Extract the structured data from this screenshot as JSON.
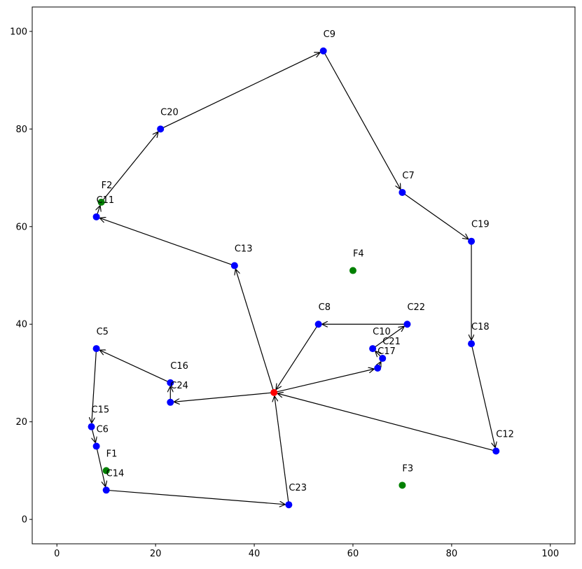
{
  "chart_data": {
    "type": "scatter",
    "title": "",
    "xlabel": "",
    "ylabel": "",
    "xlim": [
      -5,
      105
    ],
    "ylim": [
      -5,
      105
    ],
    "xticks": [
      0,
      20,
      40,
      60,
      80,
      100
    ],
    "yticks": [
      0,
      20,
      40,
      60,
      80,
      100
    ],
    "grid": false,
    "colors": {
      "customer": "#0000ff",
      "depot": "#ff0000",
      "facility": "#008000",
      "arrow": "#000000"
    },
    "depot": {
      "x": 44,
      "y": 26
    },
    "customers": [
      {
        "label": "C5",
        "x": 8,
        "y": 35
      },
      {
        "label": "C6",
        "x": 8,
        "y": 15
      },
      {
        "label": "C7",
        "x": 70,
        "y": 67
      },
      {
        "label": "C8",
        "x": 53,
        "y": 40
      },
      {
        "label": "C9",
        "x": 54,
        "y": 96
      },
      {
        "label": "C10",
        "x": 64,
        "y": 35
      },
      {
        "label": "C11",
        "x": 8,
        "y": 62
      },
      {
        "label": "C12",
        "x": 89,
        "y": 14
      },
      {
        "label": "C13",
        "x": 36,
        "y": 52
      },
      {
        "label": "C14",
        "x": 10,
        "y": 6
      },
      {
        "label": "C15",
        "x": 7,
        "y": 19
      },
      {
        "label": "C16",
        "x": 23,
        "y": 28
      },
      {
        "label": "C17",
        "x": 65,
        "y": 31
      },
      {
        "label": "C18",
        "x": 84,
        "y": 36
      },
      {
        "label": "C19",
        "x": 84,
        "y": 57
      },
      {
        "label": "C20",
        "x": 21,
        "y": 80
      },
      {
        "label": "C21",
        "x": 66,
        "y": 33
      },
      {
        "label": "C22",
        "x": 71,
        "y": 40
      },
      {
        "label": "C23",
        "x": 47,
        "y": 3
      },
      {
        "label": "C24",
        "x": 23,
        "y": 24
      }
    ],
    "facilities": [
      {
        "label": "F1",
        "x": 10,
        "y": 10
      },
      {
        "label": "F2",
        "x": 9,
        "y": 65
      },
      {
        "label": "F3",
        "x": 70,
        "y": 7
      },
      {
        "label": "F4",
        "x": 60,
        "y": 51
      }
    ],
    "arcs": [
      [
        [
          44,
          26
        ],
        [
          36,
          52
        ]
      ],
      [
        [
          36,
          52
        ],
        [
          8,
          62
        ]
      ],
      [
        [
          8,
          62
        ],
        [
          9,
          65
        ]
      ],
      [
        [
          9,
          65
        ],
        [
          21,
          80
        ]
      ],
      [
        [
          21,
          80
        ],
        [
          54,
          96
        ]
      ],
      [
        [
          54,
          96
        ],
        [
          70,
          67
        ]
      ],
      [
        [
          70,
          67
        ],
        [
          84,
          57
        ]
      ],
      [
        [
          84,
          57
        ],
        [
          84,
          36
        ]
      ],
      [
        [
          84,
          36
        ],
        [
          89,
          14
        ]
      ],
      [
        [
          89,
          14
        ],
        [
          44,
          26
        ]
      ],
      [
        [
          44,
          26
        ],
        [
          23,
          24
        ]
      ],
      [
        [
          23,
          24
        ],
        [
          23,
          28
        ]
      ],
      [
        [
          23,
          28
        ],
        [
          8,
          35
        ]
      ],
      [
        [
          8,
          35
        ],
        [
          7,
          19
        ]
      ],
      [
        [
          7,
          19
        ],
        [
          8,
          15
        ]
      ],
      [
        [
          8,
          15
        ],
        [
          10,
          6
        ]
      ],
      [
        [
          10,
          6
        ],
        [
          47,
          3
        ]
      ],
      [
        [
          47,
          3
        ],
        [
          44,
          26
        ]
      ],
      [
        [
          44,
          26
        ],
        [
          65,
          31
        ]
      ],
      [
        [
          65,
          31
        ],
        [
          66,
          33
        ]
      ],
      [
        [
          66,
          33
        ],
        [
          64,
          35
        ]
      ],
      [
        [
          64,
          35
        ],
        [
          71,
          40
        ]
      ],
      [
        [
          71,
          40
        ],
        [
          53,
          40
        ]
      ],
      [
        [
          53,
          40
        ],
        [
          44,
          26
        ]
      ]
    ]
  }
}
